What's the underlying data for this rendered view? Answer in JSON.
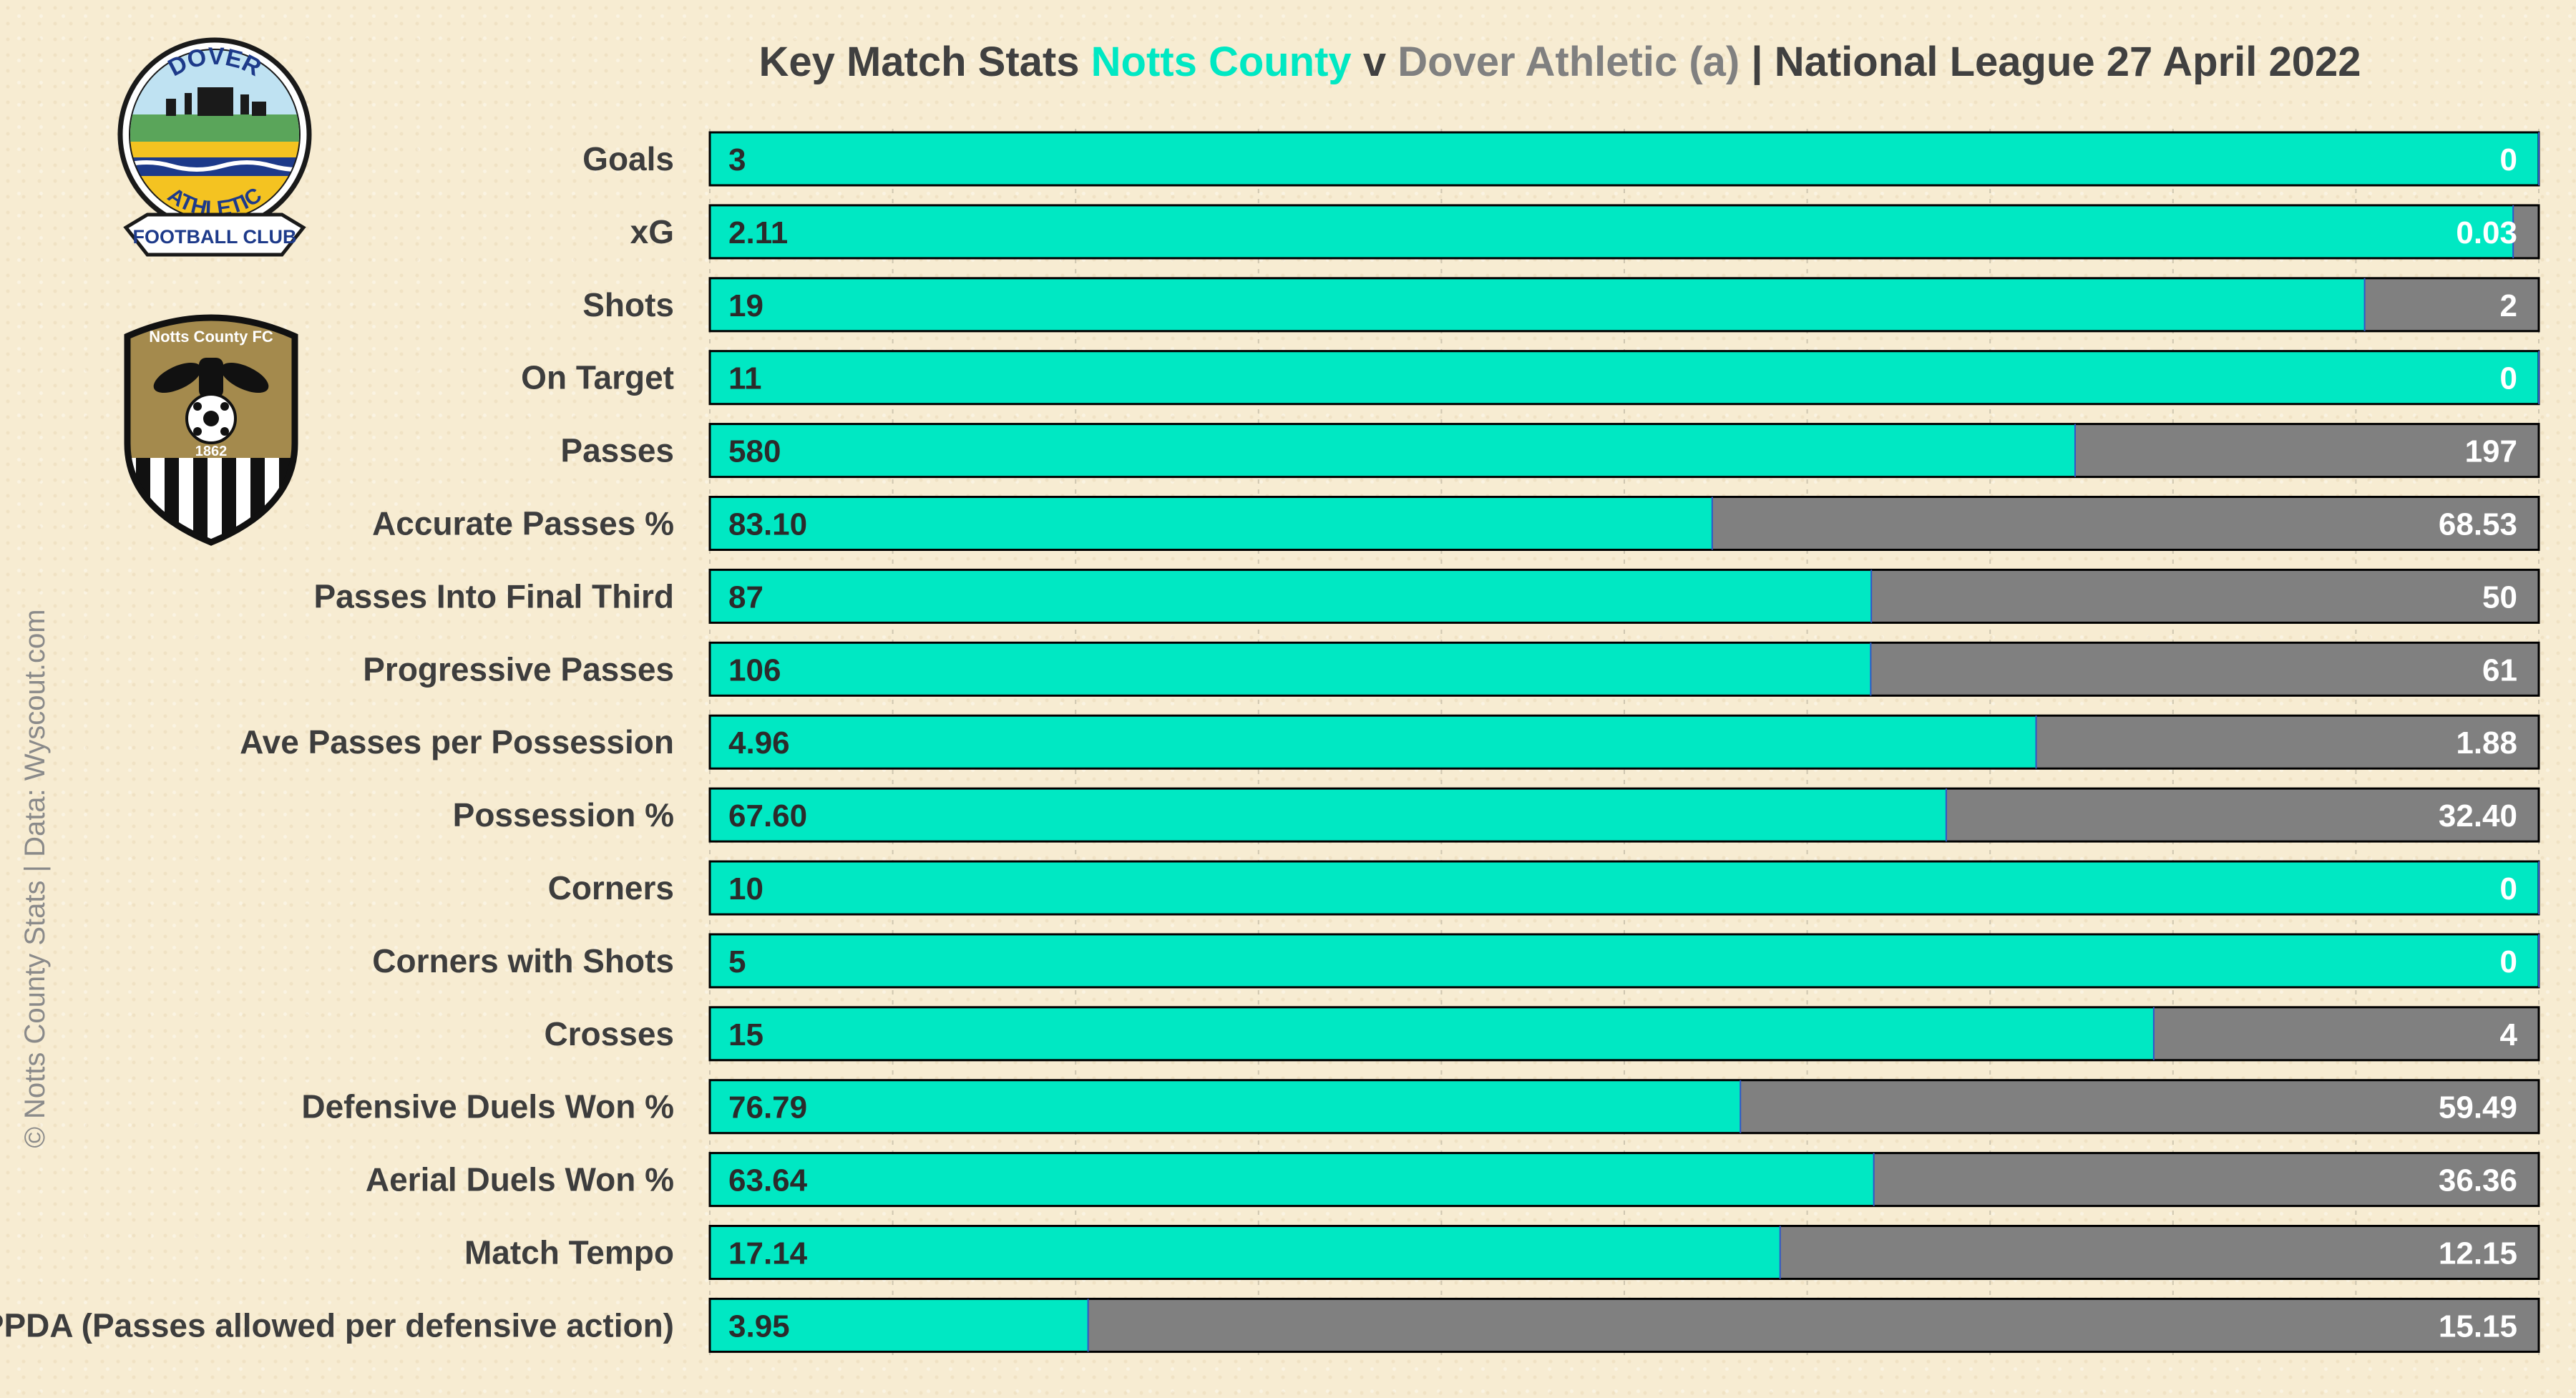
{
  "title": {
    "prefix": "Key Match Stats ",
    "home": "Notts County",
    "sep": " v ",
    "away": "Dover Athletic (a)",
    "suffix": " | National League 27 April 2022"
  },
  "credit": "© Notts County Stats | Data: Wyscout.com",
  "logos": {
    "dover": {
      "top_text": "DOVER",
      "mid_text": "ATHLETIC",
      "ribbon_text": "FOOTBALL CLUB"
    },
    "notts": {
      "top_text": "Notts County FC",
      "year": "1862"
    }
  },
  "colors": {
    "home": "#00e8c3",
    "away": "#808080",
    "title_dark": "#404040",
    "border": "#000000"
  },
  "chart_data": {
    "type": "bar",
    "orientation": "horizontal",
    "stacking": "100% stacked",
    "series": [
      {
        "name": "Notts County",
        "color": "#00e8c3"
      },
      {
        "name": "Dover Athletic",
        "color": "#808080"
      }
    ],
    "rows": [
      {
        "label": "Goals",
        "home": 3,
        "away": 0,
        "home_text": "3",
        "away_text": "0"
      },
      {
        "label": "xG",
        "home": 2.11,
        "away": 0.03,
        "home_text": "2.11",
        "away_text": "0.03"
      },
      {
        "label": "Shots",
        "home": 19,
        "away": 2,
        "home_text": "19",
        "away_text": "2"
      },
      {
        "label": "On Target",
        "home": 11,
        "away": 0,
        "home_text": "11",
        "away_text": "0"
      },
      {
        "label": "Passes",
        "home": 580,
        "away": 197,
        "home_text": "580",
        "away_text": "197"
      },
      {
        "label": "Accurate Passes %",
        "home": 83.1,
        "away": 68.53,
        "home_text": "83.10",
        "away_text": "68.53"
      },
      {
        "label": "Passes Into Final Third",
        "home": 87,
        "away": 50,
        "home_text": "87",
        "away_text": "50"
      },
      {
        "label": "Progressive Passes",
        "home": 106,
        "away": 61,
        "home_text": "106",
        "away_text": "61"
      },
      {
        "label": "Ave Passes per Possession",
        "home": 4.96,
        "away": 1.88,
        "home_text": "4.96",
        "away_text": "1.88"
      },
      {
        "label": "Possession %",
        "home": 67.6,
        "away": 32.4,
        "home_text": "67.60",
        "away_text": "32.40"
      },
      {
        "label": "Corners",
        "home": 10,
        "away": 0,
        "home_text": "10",
        "away_text": "0"
      },
      {
        "label": "Corners with Shots",
        "home": 5,
        "away": 0,
        "home_text": "5",
        "away_text": "0"
      },
      {
        "label": "Crosses",
        "home": 15,
        "away": 4,
        "home_text": "15",
        "away_text": "4"
      },
      {
        "label": "Defensive Duels Won %",
        "home": 76.79,
        "away": 59.49,
        "home_text": "76.79",
        "away_text": "59.49"
      },
      {
        "label": "Aerial Duels Won %",
        "home": 63.64,
        "away": 36.36,
        "home_text": "63.64",
        "away_text": "36.36"
      },
      {
        "label": "Match Tempo",
        "home": 17.14,
        "away": 12.15,
        "home_text": "17.14",
        "away_text": "12.15"
      },
      {
        "label": "PPDA (Passes allowed per defensive action)",
        "home": 3.95,
        "away": 15.15,
        "home_text": "3.95",
        "away_text": "15.15"
      }
    ],
    "xlim": [
      0,
      1
    ],
    "grid": true,
    "legend": "none"
  }
}
